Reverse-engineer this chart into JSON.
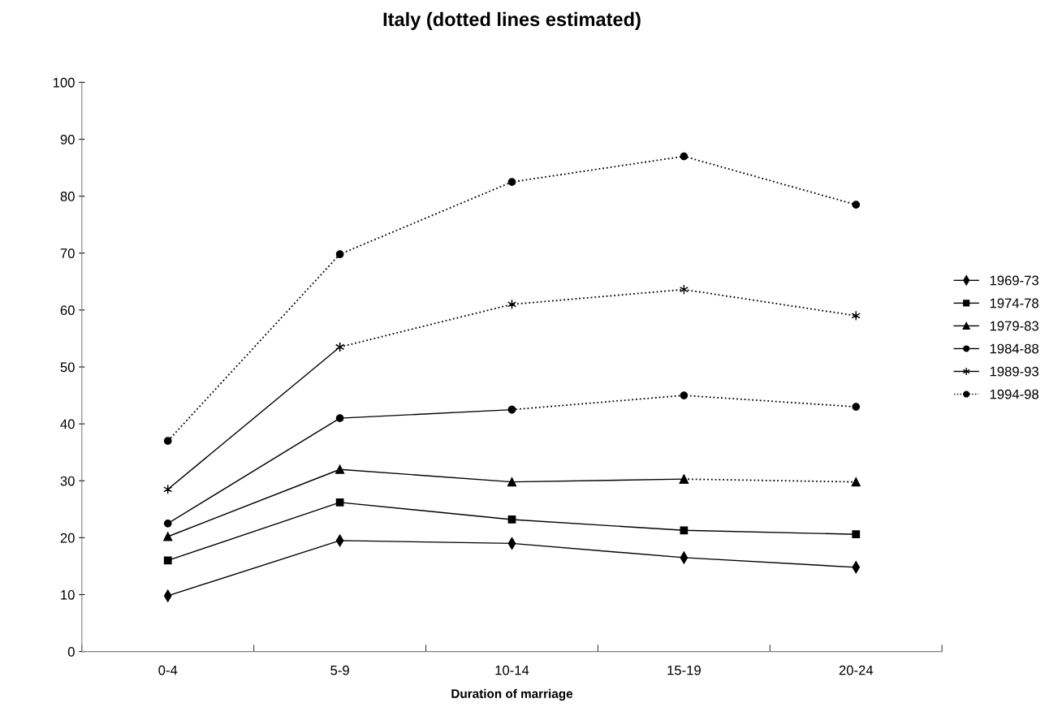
{
  "chart_data": {
    "type": "line",
    "title": "Italy (dotted lines estimated)",
    "xlabel": "Duration of marriage",
    "categories": [
      "0-4",
      "5-9",
      "10-14",
      "15-19",
      "20-24"
    ],
    "ylim": [
      0,
      100
    ],
    "yticks": [
      0,
      10,
      20,
      30,
      40,
      50,
      60,
      70,
      80,
      90,
      100
    ],
    "grid": false,
    "legend": "right",
    "series": [
      {
        "name": "1969-73",
        "color": "#000000",
        "marker": "diamond",
        "line_style": "solid",
        "values": [
          9.8,
          19.5,
          19.0,
          16.5,
          14.8
        ]
      },
      {
        "name": "1974-78",
        "color": "#000000",
        "marker": "square",
        "line_style": "solid",
        "values": [
          16.0,
          26.2,
          23.2,
          21.3,
          20.6
        ]
      },
      {
        "name": "1979-83",
        "color": "#000000",
        "marker": "triangle",
        "line_style": "solid",
        "values": [
          20.2,
          32.0,
          29.8,
          30.3,
          null
        ]
      },
      {
        "color": "#000000",
        "marker": "triangle",
        "line_style": "dotted",
        "values": [
          null,
          null,
          null,
          30.3,
          29.8
        ]
      },
      {
        "name": "1984-88",
        "color": "#000000",
        "marker": "circle",
        "line_style": "solid",
        "values": [
          22.5,
          41.0,
          42.5,
          null,
          null
        ]
      },
      {
        "color": "#000000",
        "marker": "circle",
        "line_style": "dotted",
        "values": [
          null,
          null,
          42.5,
          45.0,
          43.0
        ]
      },
      {
        "name": "1989-93",
        "color": "#000000",
        "marker": "cross",
        "line_style": "solid",
        "values": [
          28.5,
          53.5,
          null,
          null,
          null
        ]
      },
      {
        "color": "#000000",
        "marker": "cross",
        "line_style": "dotted",
        "values": [
          null,
          53.5,
          61.0,
          63.6,
          59.0
        ]
      },
      {
        "name": "1994-98",
        "color": "#000000",
        "marker": "circle",
        "line_style": "dotted",
        "values": [
          37.0,
          69.8,
          82.5,
          87.0,
          78.5
        ]
      }
    ]
  }
}
